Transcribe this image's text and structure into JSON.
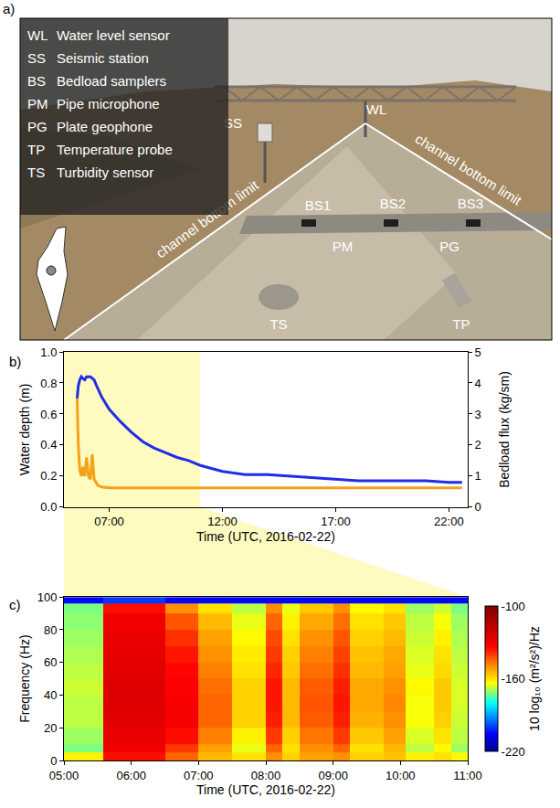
{
  "photo": {
    "letter": "a)",
    "key": [
      {
        "code": "WL",
        "text": "Water level sensor"
      },
      {
        "code": "SS",
        "text": "Seismic station"
      },
      {
        "code": "BS",
        "text": "Bedload samplers"
      },
      {
        "code": "PM",
        "text": "Pipe microphone"
      },
      {
        "code": "PG",
        "text": "Plate geophone"
      },
      {
        "code": "TP",
        "text": "Temperature probe"
      },
      {
        "code": "TS",
        "text": "Turbidity sensor"
      }
    ],
    "photo_labels": [
      "SS",
      "WL",
      "BS1",
      "BS2",
      "BS3",
      "PM",
      "PG",
      "TS",
      "TP"
    ],
    "line_labels": [
      "channel bottom limit",
      "channel bottom limit"
    ]
  },
  "chart_data": [
    {
      "panel": "b)",
      "type": "line",
      "x_title": "Time (UTC, 2016-02-22)",
      "y_title": "Water depth (m)",
      "y2_title": "Bedload flux (kg/sm)",
      "xlim": [
        "2016-02-22 05:00",
        "2016-02-22 22:50"
      ],
      "xticks": [
        {
          "value": "2016-02-22 07:00",
          "label": "07:00"
        },
        {
          "value": "2016-02-22 12:00",
          "label": "12:00"
        },
        {
          "value": "2016-02-22 17:00",
          "label": "17:00"
        },
        {
          "value": "2016-02-22 22:00",
          "label": "22:00"
        }
      ],
      "ylim": [
        0,
        1
      ],
      "yticks": [
        {
          "value": 0,
          "label": "0.0"
        },
        {
          "value": 0.2,
          "label": "0.2"
        },
        {
          "value": 0.4,
          "label": "0.4"
        },
        {
          "value": 0.6,
          "label": "0.6"
        },
        {
          "value": 0.8,
          "label": "0.8"
        },
        {
          "value": 1,
          "label": "1.0"
        }
      ],
      "y2lim": [
        0,
        5
      ],
      "y2ticks": [
        0,
        1,
        2,
        3,
        4,
        5
      ],
      "grid": false,
      "x": [
        "2016-02-22 05:35",
        "2016-02-22 05:38",
        "2016-02-22 05:42",
        "2016-02-22 05:46",
        "2016-02-22 05:50",
        "2016-02-22 05:55",
        "2016-02-22 06:00",
        "2016-02-22 06:05",
        "2016-02-22 06:10",
        "2016-02-22 06:15",
        "2016-02-22 06:20",
        "2016-02-22 06:25",
        "2016-02-22 06:30",
        "2016-02-22 06:40",
        "2016-02-22 06:50",
        "2016-02-22 07:00",
        "2016-02-22 07:30",
        "2016-02-22 08:00",
        "2016-02-22 08:30",
        "2016-02-22 09:00",
        "2016-02-22 09:30",
        "2016-02-22 10:00",
        "2016-02-22 10:30",
        "2016-02-22 11:00",
        "2016-02-22 12:00",
        "2016-02-22 13:00",
        "2016-02-22 14:00",
        "2016-02-22 15:00",
        "2016-02-22 16:00",
        "2016-02-22 17:00",
        "2016-02-22 18:00",
        "2016-02-22 19:00",
        "2016-02-22 20:00",
        "2016-02-22 21:00",
        "2016-02-22 22:00",
        "2016-02-22 22:35"
      ],
      "series": [
        {
          "color": "#1f2ee6",
          "axis": "y",
          "values": [
            0.7,
            0.78,
            0.82,
            0.84,
            0.83,
            0.82,
            0.84,
            0.84,
            0.84,
            0.83,
            0.82,
            0.79,
            0.76,
            0.71,
            0.67,
            0.63,
            0.55,
            0.48,
            0.42,
            0.38,
            0.35,
            0.32,
            0.3,
            0.27,
            0.23,
            0.21,
            0.21,
            0.2,
            0.19,
            0.18,
            0.17,
            0.17,
            0.17,
            0.17,
            0.16,
            0.16
          ]
        },
        {
          "color": "#f5a21b",
          "axis": "y2",
          "values": [
            3.5,
            2.0,
            1.2,
            1.0,
            1.3,
            1.0,
            1.6,
            1.0,
            0.9,
            1.7,
            0.9,
            0.8,
            0.7,
            0.65,
            0.63,
            0.62,
            0.62,
            0.62,
            0.62,
            0.62,
            0.62,
            0.62,
            0.62,
            0.62,
            0.62,
            0.62,
            0.62,
            0.62,
            0.62,
            0.62,
            0.62,
            0.62,
            0.62,
            0.62,
            0.62,
            0.62
          ]
        }
      ]
    },
    {
      "panel": "c)",
      "type": "heatmap",
      "x_title": "Time (UTC, 2016-02-22)",
      "y_title": "Frequency (Hz)",
      "xlim": [
        "2016-02-22 05:00",
        "2016-02-22 11:00"
      ],
      "xticks": [
        {
          "value": "2016-02-22 05:00",
          "label": "05:00"
        },
        {
          "value": "2016-02-22 06:00",
          "label": "06:00"
        },
        {
          "value": "2016-02-22 07:00",
          "label": "07:00"
        },
        {
          "value": "2016-02-22 08:00",
          "label": "08:00"
        },
        {
          "value": "2016-02-22 09:00",
          "label": "09:00"
        },
        {
          "value": "2016-02-22 10:00",
          "label": "10:00"
        },
        {
          "value": "2016-02-22 11:00",
          "label": "11:00"
        }
      ],
      "ylim": [
        0,
        100
      ],
      "yticks": [
        0,
        20,
        40,
        60,
        80,
        100
      ],
      "grid": false,
      "x": [
        "2016-02-22 05:00",
        "2016-02-22 05:35",
        "2016-02-22 06:30",
        "2016-02-22 07:00",
        "2016-02-22 07:30",
        "2016-02-22 08:00",
        "2016-02-22 08:15",
        "2016-02-22 08:30",
        "2016-02-22 09:00",
        "2016-02-22 09:15",
        "2016-02-22 09:45",
        "2016-02-22 10:05",
        "2016-02-22 10:30",
        "2016-02-22 10:45",
        "2016-02-22 11:00"
      ],
      "y": [
        0,
        5,
        10,
        20,
        30,
        40,
        50,
        60,
        70,
        80,
        90,
        96,
        100
      ],
      "cells": [
        [
          -162,
          -135,
          -145,
          -155,
          -160,
          -150,
          -158,
          -152,
          -150,
          -158,
          -156,
          -162,
          -160,
          -163
        ],
        [
          -172,
          -130,
          -140,
          -152,
          -165,
          -145,
          -160,
          -150,
          -145,
          -160,
          -155,
          -168,
          -163,
          -170
        ],
        [
          -170,
          -128,
          -135,
          -148,
          -162,
          -140,
          -158,
          -147,
          -140,
          -157,
          -152,
          -166,
          -160,
          -168
        ],
        [
          -168,
          -126,
          -132,
          -145,
          -158,
          -137,
          -155,
          -144,
          -137,
          -154,
          -150,
          -164,
          -158,
          -167
        ],
        [
          -168,
          -125,
          -132,
          -145,
          -158,
          -136,
          -155,
          -143,
          -136,
          -153,
          -149,
          -164,
          -157,
          -166
        ],
        [
          -167,
          -125,
          -133,
          -146,
          -158,
          -136,
          -155,
          -144,
          -137,
          -153,
          -150,
          -163,
          -157,
          -166
        ],
        [
          -168,
          -126,
          -134,
          -148,
          -160,
          -138,
          -157,
          -146,
          -139,
          -155,
          -152,
          -165,
          -159,
          -167
        ],
        [
          -169,
          -127,
          -136,
          -150,
          -161,
          -140,
          -158,
          -148,
          -141,
          -156,
          -153,
          -166,
          -160,
          -168
        ],
        [
          -170,
          -128,
          -139,
          -152,
          -163,
          -142,
          -160,
          -150,
          -143,
          -158,
          -155,
          -167,
          -162,
          -169
        ],
        [
          -171,
          -130,
          -143,
          -155,
          -165,
          -145,
          -162,
          -153,
          -146,
          -160,
          -157,
          -168,
          -164,
          -170
        ],
        [
          -172,
          -135,
          -150,
          -160,
          -168,
          -150,
          -165,
          -157,
          -150,
          -163,
          -160,
          -170,
          -167,
          -172
        ],
        [
          -205,
          -200,
          -205,
          -205,
          -205,
          -205,
          -205,
          -205,
          -205,
          -205,
          -205,
          -205,
          -205,
          -205
        ]
      ],
      "colorbar_title": "10 log₁₀ (m²/s²)/Hz",
      "colorbar_range": [
        -220,
        -100
      ],
      "colorbar_ticks": [
        -220,
        -160,
        -100
      ]
    }
  ]
}
